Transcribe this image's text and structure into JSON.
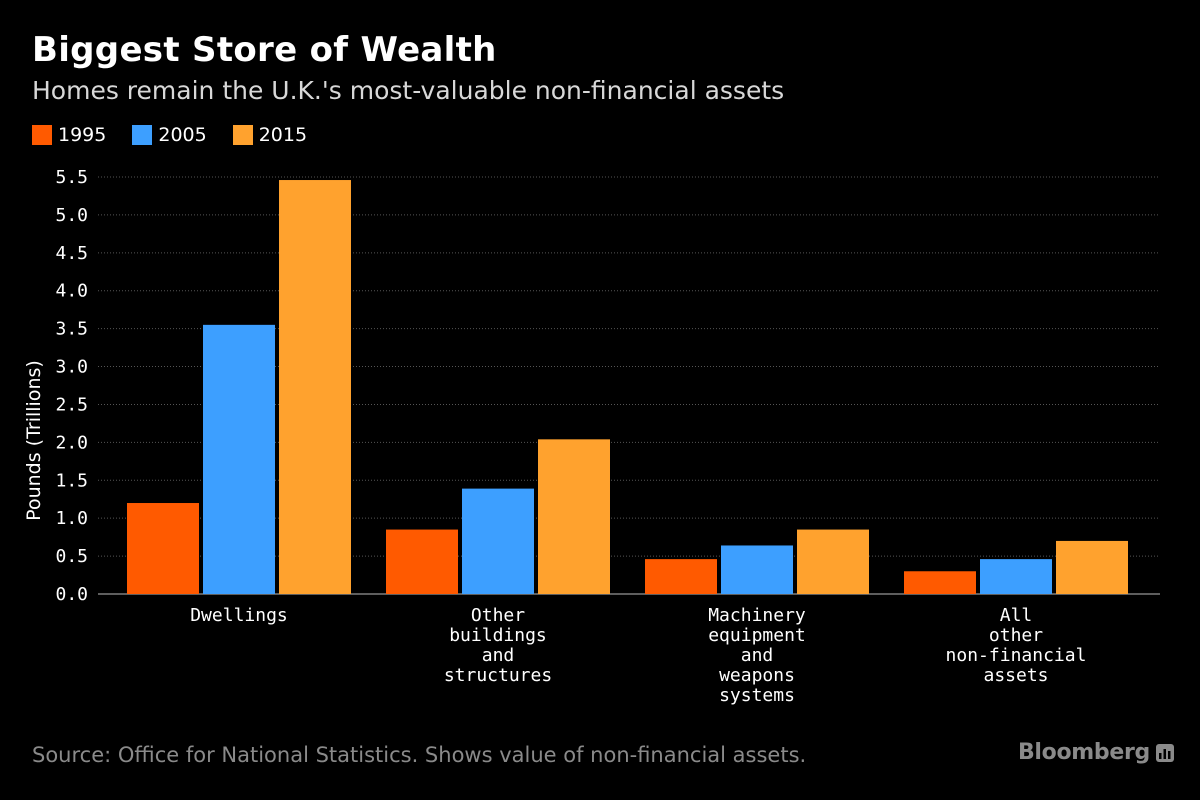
{
  "header": {
    "title": "Biggest Store of Wealth",
    "subtitle": "Homes remain the U.K.'s most-valuable non-financial assets"
  },
  "footer": {
    "source": "Source: Office for National Statistics. Shows value of non-financial assets.",
    "brand": "Bloomberg",
    "brand_icon": "bloomberg-chart-icon"
  },
  "colors": {
    "background": "#000000",
    "series_1995": "#ff5a00",
    "series_2005": "#3d9fff",
    "series_2015": "#ffa22e",
    "grid": "#555555",
    "axis_text": "#ffffff"
  },
  "chart_data": {
    "type": "bar",
    "title": "Biggest Store of Wealth",
    "subtitle": "Homes remain the U.K.'s most-valuable non-financial assets",
    "xlabel": "",
    "ylabel": "Pounds (Trillions)",
    "ylim": [
      0,
      5.5
    ],
    "yticks": [
      "0.0",
      "0.5",
      "1.0",
      "1.5",
      "2.0",
      "2.5",
      "3.0",
      "3.5",
      "4.0",
      "4.5",
      "5.0",
      "5.5"
    ],
    "grid": true,
    "legend_position": "top-left",
    "categories": [
      [
        "Dwellings"
      ],
      [
        "Other",
        "buildings",
        "and",
        "structures"
      ],
      [
        "Machinery",
        "equipment",
        "and",
        "weapons",
        "systems"
      ],
      [
        "All",
        "other",
        "non-financial",
        "assets"
      ]
    ],
    "series": [
      {
        "name": "1995",
        "color": "#ff5a00",
        "values": [
          1.2,
          0.85,
          0.46,
          0.3
        ]
      },
      {
        "name": "2005",
        "color": "#3d9fff",
        "values": [
          3.55,
          1.39,
          0.64,
          0.46
        ]
      },
      {
        "name": "2015",
        "color": "#ffa22e",
        "values": [
          5.46,
          2.04,
          0.85,
          0.7
        ]
      }
    ]
  }
}
